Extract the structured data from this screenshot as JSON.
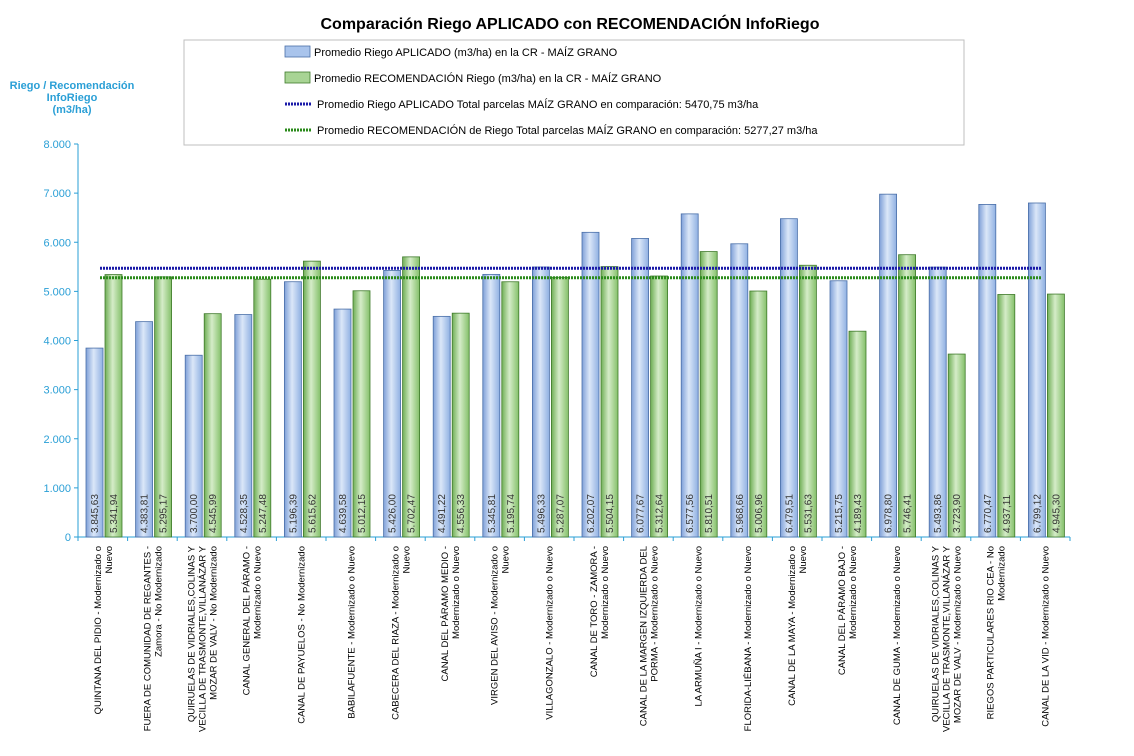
{
  "chart_data": {
    "type": "bar",
    "title": "Comparación Riego APLICADO con RECOMENDACIÓN InfoRiego",
    "ylabel_lines": [
      "Riego / Recomendación",
      "InfoRiego",
      "(m3/ha)"
    ],
    "ylim": [
      0,
      8000
    ],
    "yticks": [
      0,
      1000,
      2000,
      3000,
      4000,
      5000,
      6000,
      7000,
      8000
    ],
    "ytick_labels": [
      "0",
      "1.000",
      "2.000",
      "3.000",
      "4.000",
      "5.000",
      "6.000",
      "7.000",
      "8.000"
    ],
    "categories": [
      [
        "QUINTANA DEL PIDIO - Modernizado o",
        "Nuevo"
      ],
      [
        "FUERA DE COMUNIDAD DE REGANTES -",
        "Zamora - No Modernizado"
      ],
      [
        "QUIRUELAS DE VIDRIALES,COLINAS Y",
        "VECILLA DE TRASMONTE,VILLANÁZAR Y",
        "MOZAR DE VALV - No Modernizado"
      ],
      [
        "CANAL GENERAL DEL PÁRAMO -",
        "Modernizado o Nuevo"
      ],
      [
        "CANAL DE PAYUELOS - No Modernizado"
      ],
      [
        "BABILAFUENTE - Modernizado o Nuevo"
      ],
      [
        "CABECERA DEL RIAZA - Modernizado o",
        "Nuevo"
      ],
      [
        "CANAL DEL PÁRAMO MEDIO -",
        "Modernizado o Nuevo"
      ],
      [
        "VIRGEN DEL AVISO - Modernizado o",
        "Nuevo"
      ],
      [
        "VILLAGONZALO - Modernizado o Nuevo"
      ],
      [
        "CANAL DE TORO - ZAMORA -",
        "Modernizado o Nuevo"
      ],
      [
        "CANAL DE LA MARGEN IZQUIERDA DEL",
        "PORMA - Modernizado o Nuevo"
      ],
      [
        "LA ARMUÑA I - Modernizado o Nuevo"
      ],
      [
        "FLORIDA-LIÉBANA - Modernizado o Nuevo"
      ],
      [
        "CANAL DE LA MAYA - Modernizado o",
        "Nuevo"
      ],
      [
        "CANAL DEL PÁRAMO BAJO -",
        "Modernizado o Nuevo"
      ],
      [
        "CANAL DE GUMA - Modernizado o Nuevo"
      ],
      [
        "QUIRUELAS DE VIDRIALES,COLINAS Y",
        "VECILLA DE TRASMONTE,VILLANÁZAR Y",
        "MOZAR DE VALV - Modernizado o Nuevo"
      ],
      [
        "RIEGOS PARTICULARES RIO CEA - No",
        "Modernizado"
      ],
      [
        "CANAL DE LA VID - Modernizado o Nuevo"
      ]
    ],
    "series": [
      {
        "name": "Promedio Riego APLICADO (m3/ha) en la CR - MAÍZ GRANO",
        "color": "#a9c4ec",
        "values": [
          3845.63,
          4383.81,
          3700.0,
          4528.35,
          5196.39,
          4639.58,
          5426.0,
          4491.22,
          5345.81,
          5496.33,
          6202.07,
          6077.67,
          6577.56,
          5968.66,
          6479.51,
          5215.75,
          6978.8,
          5493.86,
          6770.47,
          6799.12
        ],
        "labels": [
          "3.845,63",
          "4.383,81",
          "3.700,00",
          "4.528,35",
          "5.196,39",
          "4.639,58",
          "5.426,00",
          "4.491,22",
          "5.345,81",
          "5.496,33",
          "6.202,07",
          "6.077,67",
          "6.577,56",
          "5.968,66",
          "6.479,51",
          "5.215,75",
          "6.978,80",
          "5.493,86",
          "6.770,47",
          "6.799,12"
        ]
      },
      {
        "name": "Promedio RECOMENDACIÓN Riego (m3/ha) en la CR - MAÍZ GRANO",
        "color": "#a8d494",
        "values": [
          5341.94,
          5295.17,
          4545.99,
          5247.48,
          5615.62,
          5012.15,
          5702.47,
          4556.33,
          5195.74,
          5287.07,
          5504.15,
          5312.64,
          5810.51,
          5006.96,
          5531.63,
          4189.43,
          5746.41,
          3723.9,
          4937.11,
          4945.3
        ],
        "labels": [
          "5.341,94",
          "5.295,17",
          "4.545,99",
          "5.247,48",
          "5.615,62",
          "5.012,15",
          "5.702,47",
          "4.556,33",
          "5.195,74",
          "5.287,07",
          "5.504,15",
          "5.312,64",
          "5.810,51",
          "5.006,96",
          "5.531,63",
          "4.189,43",
          "5.746,41",
          "3.723,90",
          "4.937,11",
          "4.945,30"
        ]
      }
    ],
    "reference_lines": [
      {
        "name": "Promedio Riego APLICADO Total parcelas MAÍZ GRANO en comparación: 5470,75 m3/ha",
        "value": 5470.75,
        "color": "#1a1aa8"
      },
      {
        "name": "Promedio RECOMENDACIÓN de Riego Total parcelas MAÍZ GRANO en comparación: 5277,27 m3/ha",
        "value": 5277.27,
        "color": "#2a8a1a"
      }
    ],
    "axis_color": "#2a9fd6",
    "grid": false
  }
}
